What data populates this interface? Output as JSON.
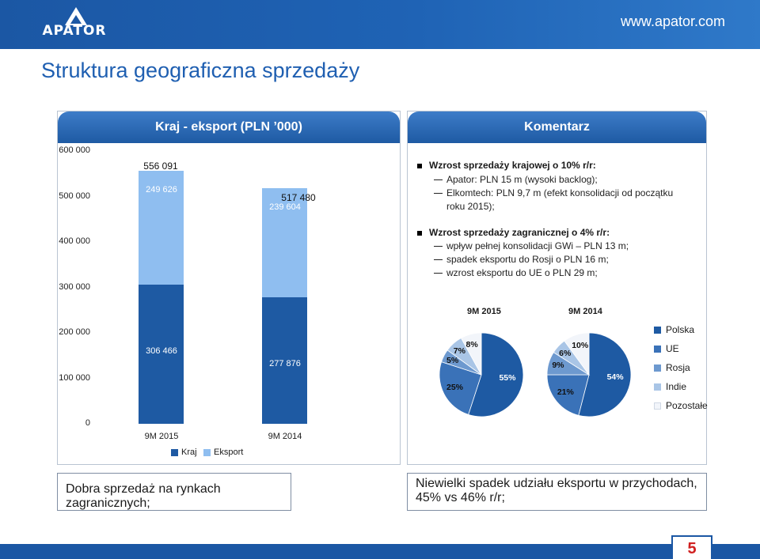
{
  "header": {
    "logo_text": "APATOR",
    "website": "www.apator.com"
  },
  "title": "Struktura geograficzna sprzedaży",
  "left_panel": {
    "title": "Kraj - eksport (PLN ’000)",
    "legend": [
      {
        "label": "Kraj",
        "color": "#1e5aa3"
      },
      {
        "label": "Eksport",
        "color": "#8fbef0"
      }
    ]
  },
  "right_panel": {
    "title": "Komentarz",
    "bullets": [
      {
        "text": "Wzrost sprzedaży krajowej o 10% r/r:",
        "subs": [
          "Apator: PLN 15 m (wysoki backlog);",
          "Elkomtech: PLN 9,7 m (efekt konsolidacji od początku",
          "roku 2015);"
        ]
      },
      {
        "text": "Wzrost sprzedaży zagranicznej o 4% r/r:",
        "subs": [
          "wpływ pełnej konsolidacji GWi – PLN 13 m;",
          "spadek eksportu do Rosji o PLN 16 m;",
          "wzrost eksportu do UE o PLN 29 m;"
        ]
      }
    ],
    "pie_legend": [
      {
        "label": "Polska",
        "color": "#1e5aa3"
      },
      {
        "label": "UE",
        "color": "#3a72b8"
      },
      {
        "label": "Rosja",
        "color": "#6d99cf"
      },
      {
        "label": "Indie",
        "color": "#a9c5e6"
      },
      {
        "label": "Pozostałe",
        "color": "#f2f5fa"
      }
    ]
  },
  "chart_data": [
    {
      "type": "bar",
      "title": "Kraj - eksport (PLN ’000)",
      "categories": [
        "9M 2015",
        "9M 2014"
      ],
      "series": [
        {
          "name": "Kraj",
          "values": [
            306466,
            277876
          ],
          "labels": [
            "306 466",
            "277 876"
          ]
        },
        {
          "name": "Eksport",
          "values": [
            249626,
            239604
          ],
          "labels": [
            "249 626",
            "239 604"
          ]
        }
      ],
      "totals": [
        556091,
        517480
      ],
      "total_labels": [
        "556 091",
        "517 480"
      ],
      "ylim": [
        0,
        600000
      ],
      "yticks": [
        "0",
        "100 000",
        "200 000",
        "300 000",
        "400 000",
        "500 000",
        "600 000"
      ],
      "stacked": true
    },
    {
      "type": "pie",
      "title": "9M 2015",
      "categories": [
        "Polska",
        "UE",
        "Rosja",
        "Indie",
        "Pozostałe"
      ],
      "values": [
        55,
        25,
        5,
        7,
        8
      ],
      "labels": [
        "55%",
        "25%",
        "5%",
        "7%",
        "8%"
      ]
    },
    {
      "type": "pie",
      "title": "9M 2014",
      "categories": [
        "Polska",
        "UE",
        "Rosja",
        "Indie",
        "Pozostałe"
      ],
      "values": [
        54,
        21,
        9,
        6,
        10
      ],
      "labels": [
        "54%",
        "21%",
        "9%",
        "6%",
        "10%"
      ]
    }
  ],
  "bottom_left": "Dobra sprzedaż na rynkach zagranicznych;",
  "bottom_right": [
    "Niewielki spadek udziału eksportu w przychodach,",
    "45% vs 46% r/r;"
  ],
  "page_number": "5"
}
